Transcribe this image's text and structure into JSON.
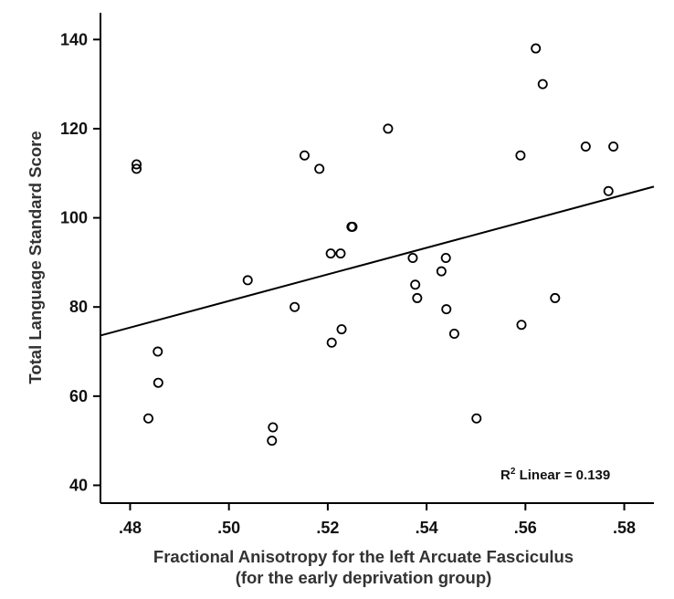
{
  "chart_data": {
    "type": "scatter",
    "xlabel_line1": "Fractional Anisotropy for the left Arcuate Fasciculus",
    "xlabel_line2": "(for the early deprivation group)",
    "ylabel": "Total Language Standard Score",
    "xlim": [
      0.474,
      0.586
    ],
    "ylim": [
      36,
      146
    ],
    "x_ticks": [
      0.48,
      0.5,
      0.52,
      0.54,
      0.56,
      0.58
    ],
    "x_tick_labels": [
      ".48",
      ".50",
      ".52",
      ".54",
      ".56",
      ".58"
    ],
    "y_ticks": [
      40,
      60,
      80,
      100,
      120,
      140
    ],
    "y_tick_labels": [
      "40",
      "60",
      "80",
      "100",
      "120",
      "140"
    ],
    "grid": false,
    "annotation": {
      "r_prefix": "R",
      "r_sup": "2",
      "text": " Linear = 0.139"
    },
    "fit_line": {
      "x": [
        0.474,
        0.586
      ],
      "y": [
        73.6,
        107
      ]
    },
    "points": [
      {
        "x": 0.4813,
        "y": 112
      },
      {
        "x": 0.4813,
        "y": 111
      },
      {
        "x": 0.4856,
        "y": 70
      },
      {
        "x": 0.4857,
        "y": 63
      },
      {
        "x": 0.4837,
        "y": 55
      },
      {
        "x": 0.5038,
        "y": 86
      },
      {
        "x": 0.5089,
        "y": 53
      },
      {
        "x": 0.5087,
        "y": 50
      },
      {
        "x": 0.5133,
        "y": 80
      },
      {
        "x": 0.5153,
        "y": 114
      },
      {
        "x": 0.5183,
        "y": 111
      },
      {
        "x": 0.5206,
        "y": 92
      },
      {
        "x": 0.5226,
        "y": 92
      },
      {
        "x": 0.5208,
        "y": 72
      },
      {
        "x": 0.5228,
        "y": 75
      },
      {
        "x": 0.5248,
        "y": 98
      },
      {
        "x": 0.525,
        "y": 98
      },
      {
        "x": 0.5322,
        "y": 120
      },
      {
        "x": 0.5372,
        "y": 91
      },
      {
        "x": 0.5377,
        "y": 85
      },
      {
        "x": 0.5381,
        "y": 82
      },
      {
        "x": 0.543,
        "y": 88
      },
      {
        "x": 0.5439,
        "y": 91
      },
      {
        "x": 0.544,
        "y": 79.5
      },
      {
        "x": 0.5456,
        "y": 74
      },
      {
        "x": 0.5501,
        "y": 55
      },
      {
        "x": 0.559,
        "y": 114
      },
      {
        "x": 0.5592,
        "y": 76
      },
      {
        "x": 0.5621,
        "y": 138
      },
      {
        "x": 0.5635,
        "y": 130
      },
      {
        "x": 0.566,
        "y": 82
      },
      {
        "x": 0.5722,
        "y": 116
      },
      {
        "x": 0.5768,
        "y": 106
      },
      {
        "x": 0.5778,
        "y": 116
      }
    ]
  }
}
